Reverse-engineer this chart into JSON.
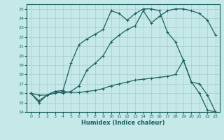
{
  "xlabel": "Humidex (Indice chaleur)",
  "bg_color": "#c5e8e8",
  "line_color": "#1a6060",
  "grid_color": "#b0d0d0",
  "xlim": [
    -0.5,
    23.5
  ],
  "ylim": [
    14,
    25.5
  ],
  "xticks": [
    0,
    1,
    2,
    3,
    4,
    5,
    6,
    7,
    8,
    9,
    10,
    11,
    12,
    13,
    14,
    15,
    16,
    17,
    18,
    19,
    20,
    21,
    22,
    23
  ],
  "yticks": [
    14,
    15,
    16,
    17,
    18,
    19,
    20,
    21,
    22,
    23,
    24,
    25
  ],
  "line1_x": [
    0,
    1,
    2,
    3,
    4,
    5,
    6,
    7,
    8,
    9,
    10,
    11,
    12,
    13,
    14,
    15,
    16,
    17,
    18,
    19,
    20,
    21,
    22,
    23
  ],
  "line1_y": [
    16,
    15,
    15.8,
    16.2,
    16,
    16.2,
    16.8,
    18.5,
    19.2,
    20,
    21.5,
    22.2,
    22.8,
    23.2,
    24.8,
    23.5,
    24.2,
    24.8,
    25,
    25,
    24.8,
    24.5,
    23.8,
    22.2
  ],
  "line2_x": [
    0,
    1,
    2,
    3,
    4,
    5,
    6,
    7,
    8,
    9,
    10,
    11,
    12,
    13,
    14,
    15,
    16,
    17,
    18,
    19,
    20,
    21,
    22,
    23
  ],
  "line2_y": [
    16,
    15.2,
    15.8,
    16.2,
    16.3,
    19.2,
    21.2,
    21.8,
    22.3,
    22.8,
    24.8,
    24.5,
    23.8,
    24.5,
    25,
    25,
    24.8,
    22.5,
    21.5,
    19.5,
    17.2,
    16,
    14.2,
    14
  ],
  "line3_x": [
    0,
    1,
    2,
    3,
    4,
    5,
    6,
    7,
    8,
    9,
    10,
    11,
    12,
    13,
    14,
    15,
    16,
    17,
    18,
    19,
    20,
    21,
    22,
    23
  ],
  "line3_y": [
    16,
    15.8,
    15.8,
    16,
    16.2,
    16.1,
    16.1,
    16.2,
    16.3,
    16.5,
    16.8,
    17.0,
    17.2,
    17.4,
    17.5,
    17.6,
    17.7,
    17.8,
    18.0,
    19.5,
    17.2,
    17.0,
    15.8,
    14.0
  ]
}
